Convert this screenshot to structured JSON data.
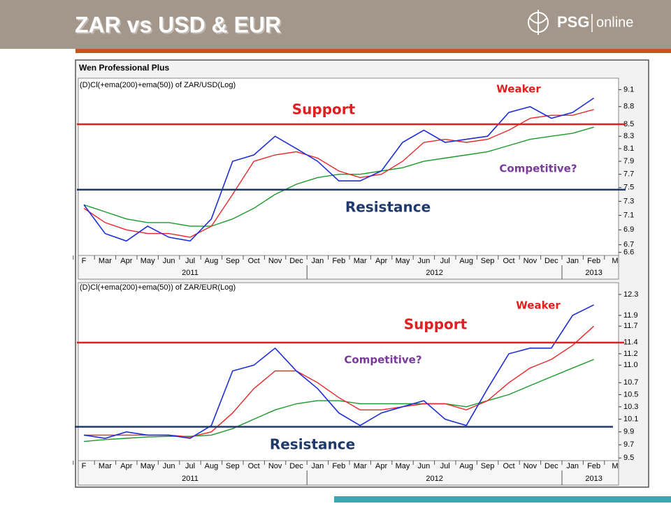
{
  "header": {
    "title": "ZAR vs USD & EUR",
    "logo_brand": "PSG",
    "logo_sub": "online"
  },
  "source": "Wen Professional Plus",
  "chart_data": [
    {
      "type": "line",
      "title": "(D)Cl(+ema(200)+ema(50)) of ZAR/USD(Log)",
      "categories": [
        "F",
        "Mar",
        "Apr",
        "May",
        "Jun",
        "Jul",
        "Aug",
        "Sep",
        "Oct",
        "Nov",
        "Dec",
        "Jan",
        "Feb",
        "Mar",
        "Apr",
        "May",
        "Jun",
        "Jul",
        "Aug",
        "Sep",
        "Oct",
        "Nov",
        "Dec",
        "Jan",
        "Feb",
        "M"
      ],
      "years": [
        "2011",
        "2012",
        "2013"
      ],
      "log": true,
      "ylim": [
        6.56,
        9.27
      ],
      "yticks": [
        9.1,
        8.8,
        8.5,
        8.3,
        8.1,
        7.9,
        7.7,
        7.5,
        7.3,
        7.1,
        6.9,
        6.7,
        6.6
      ],
      "series": [
        {
          "color": "#1f2fd6",
          "values": [
            7.25,
            6.85,
            6.75,
            6.95,
            6.8,
            6.75,
            7.05,
            7.9,
            8.0,
            8.3,
            8.1,
            7.9,
            7.6,
            7.6,
            7.75,
            8.2,
            8.4,
            8.2,
            8.25,
            8.3,
            8.7,
            8.8,
            8.6,
            8.7,
            8.95,
            null
          ]
        },
        {
          "color": "#e8282a",
          "values": [
            7.2,
            7.0,
            6.9,
            6.85,
            6.85,
            6.8,
            6.95,
            7.4,
            7.9,
            8.0,
            8.05,
            7.95,
            7.75,
            7.65,
            7.7,
            7.9,
            8.2,
            8.25,
            8.2,
            8.25,
            8.4,
            8.6,
            8.65,
            8.65,
            8.75,
            null
          ]
        },
        {
          "color": "#1a9a2a",
          "values": [
            7.25,
            7.15,
            7.05,
            7.0,
            7.0,
            6.95,
            6.95,
            7.05,
            7.2,
            7.4,
            7.55,
            7.65,
            7.7,
            7.7,
            7.75,
            7.8,
            7.9,
            7.95,
            8.0,
            8.05,
            8.15,
            8.25,
            8.3,
            8.35,
            8.45,
            null
          ]
        }
      ],
      "reference_lines": [
        {
          "label": "Support",
          "value": 8.5,
          "color": "#e02020"
        },
        {
          "label": "Resistance",
          "value": 7.47,
          "color": "#1f3a6a"
        }
      ],
      "annotations": [
        {
          "text": "Weaker",
          "color": "#e02020"
        },
        {
          "text": "Competitive?",
          "color": "#7a3a9a"
        }
      ]
    },
    {
      "type": "line",
      "title": "(D)Cl(+ema(200)+ema(50)) of ZAR/EUR(Log)",
      "categories": [
        "F",
        "Mar",
        "Apr",
        "May",
        "Jun",
        "Jul",
        "Aug",
        "Sep",
        "Oct",
        "Nov",
        "Dec",
        "Jan",
        "Feb",
        "Mar",
        "Apr",
        "May",
        "Jun",
        "Jul",
        "Aug",
        "Sep",
        "Oct",
        "Nov",
        "Dec",
        "Jan",
        "Feb",
        "M"
      ],
      "years": [
        "2011",
        "2012",
        "2013"
      ],
      "log": true,
      "ylim": [
        9.46,
        12.49
      ],
      "yticks": [
        12.3,
        11.9,
        11.7,
        11.4,
        11.2,
        {
          "value": 11,
          "label": "11.0"
        },
        10.7,
        10.5,
        10.3,
        10.1,
        9.9,
        9.7,
        9.5
      ],
      "series": [
        {
          "color": "#1f2fd6",
          "values": [
            9.85,
            9.8,
            9.9,
            9.85,
            9.85,
            9.8,
            10.0,
            10.9,
            11.0,
            11.3,
            10.9,
            10.6,
            10.2,
            10.0,
            10.2,
            10.3,
            10.4,
            10.1,
            10.0,
            10.6,
            11.2,
            11.3,
            11.3,
            11.9,
            12.1,
            null
          ]
        },
        {
          "color": "#e8282a",
          "values": [
            9.85,
            9.85,
            9.85,
            9.85,
            9.85,
            9.82,
            9.9,
            10.2,
            10.6,
            10.9,
            10.9,
            10.7,
            10.45,
            10.25,
            10.25,
            10.3,
            10.35,
            10.35,
            10.25,
            10.4,
            10.7,
            10.95,
            11.1,
            11.35,
            11.7,
            null
          ]
        },
        {
          "color": "#1a9a2a",
          "values": [
            9.75,
            9.78,
            9.8,
            9.82,
            9.83,
            9.83,
            9.85,
            9.95,
            10.1,
            10.25,
            10.35,
            10.4,
            10.4,
            10.35,
            10.35,
            10.35,
            10.35,
            10.35,
            10.3,
            10.4,
            10.5,
            10.65,
            10.8,
            10.95,
            11.1,
            null
          ]
        }
      ],
      "reference_lines": [
        {
          "label": "Support",
          "value": 11.4,
          "color": "#e02020"
        },
        {
          "label": "Resistance",
          "value": 9.98,
          "color": "#1f3a6a"
        }
      ],
      "annotations": [
        {
          "text": "Weaker",
          "color": "#e02020"
        },
        {
          "text": "Competitive?",
          "color": "#7a3a9a"
        }
      ]
    }
  ]
}
